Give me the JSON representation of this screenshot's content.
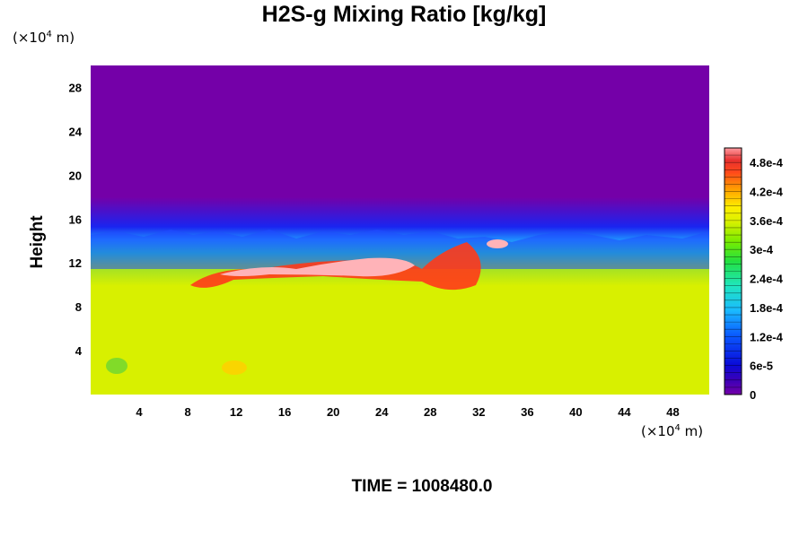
{
  "title": "H2S-g Mixing Ratio [kg/kg]",
  "y_unit": {
    "prefix": "(×10",
    "exp": "4",
    "suffix": " m)"
  },
  "x_unit": {
    "prefix": "(×10",
    "exp": "4",
    "suffix": " m)"
  },
  "time_label": "TIME = 1008480.0",
  "chart_data": {
    "type": "heatmap",
    "title": "H2S-g Mixing Ratio [kg/kg]",
    "ylabel": "Height",
    "xlim": [
      0,
      51
    ],
    "ylim": [
      0,
      30
    ],
    "xticks": [
      4,
      8,
      12,
      16,
      20,
      24,
      28,
      32,
      36,
      40,
      44,
      48
    ],
    "yticks": [
      4,
      8,
      12,
      16,
      20,
      24,
      28
    ],
    "colorbar": {
      "range": [
        0,
        0.00051
      ],
      "tick_values": [
        0,
        6e-05,
        0.00012,
        0.00018,
        0.00024,
        0.0003,
        0.00036,
        0.00042,
        0.00048
      ],
      "tick_labels": [
        "0",
        "6e-5",
        "1.2e-4",
        "1.8e-4",
        "2.4e-4",
        "3e-4",
        "3.6e-4",
        "4.2e-4",
        "4.8e-4"
      ]
    },
    "field_summary": {
      "upper_region_value": 0,
      "interface_height": 14.5,
      "lower_region_value": 0.00033,
      "peak_band_height": 11,
      "peak_value": 0.0005
    }
  }
}
